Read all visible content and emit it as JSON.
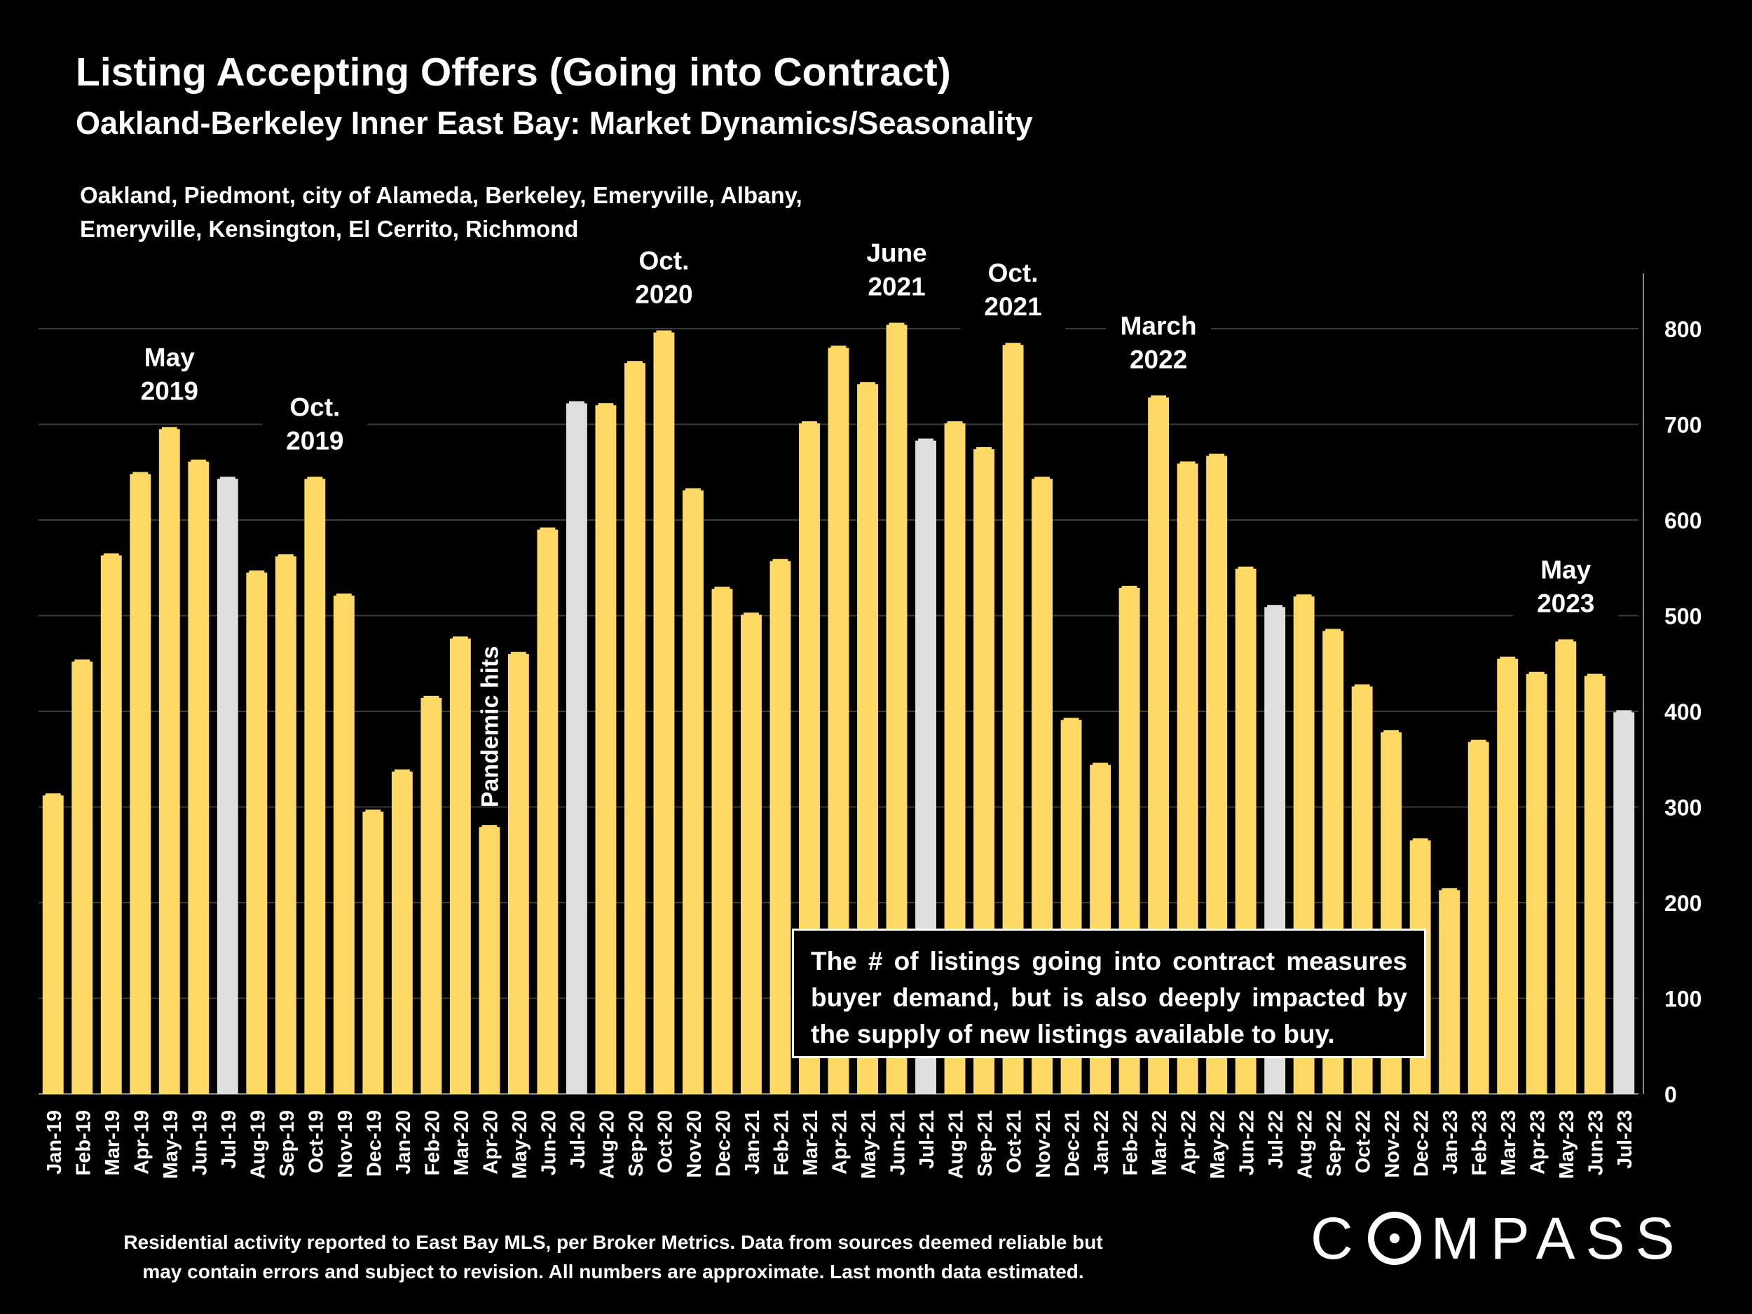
{
  "chart_data": {
    "type": "bar",
    "title": "Listing Accepting Offers (Going into Contract)",
    "subtitle": "Oakland-Berkeley Inner East Bay: Market Dynamics/Seasonality",
    "region_note": "Oakland, Piedmont, city of Alameda, Berkeley, Emeryville, Albany, Emeryville, Kensington, El Cerrito, Richmond",
    "categories": [
      "Jan-19",
      "Feb-19",
      "Mar-19",
      "Apr-19",
      "May-19",
      "Jun-19",
      "Jul-19",
      "Aug-19",
      "Sep-19",
      "Oct-19",
      "Nov-19",
      "Dec-19",
      "Jan-20",
      "Feb-20",
      "Mar-20",
      "Apr-20",
      "May-20",
      "Jun-20",
      "Jul-20",
      "Aug-20",
      "Sep-20",
      "Oct-20",
      "Nov-20",
      "Dec-20",
      "Jan-21",
      "Feb-21",
      "Mar-21",
      "Apr-21",
      "May-21",
      "Jun-21",
      "Jul-21",
      "Aug-21",
      "Sep-21",
      "Oct-21",
      "Nov-21",
      "Dec-21",
      "Jan-22",
      "Feb-22",
      "Mar-22",
      "Apr-22",
      "May-22",
      "Jun-22",
      "Jul-22",
      "Aug-22",
      "Sep-22",
      "Oct-22",
      "Nov-22",
      "Dec-22",
      "Jan-23",
      "Feb-23",
      "Mar-23",
      "Apr-23",
      "May-23",
      "Jun-23",
      "Jul-23"
    ],
    "values": [
      312,
      452,
      563,
      648,
      695,
      661,
      643,
      545,
      562,
      643,
      521,
      295,
      337,
      414,
      476,
      279,
      460,
      590,
      722,
      720,
      764,
      796,
      631,
      528,
      501,
      557,
      701,
      780,
      742,
      804,
      683,
      701,
      674,
      783,
      643,
      391,
      344,
      529,
      728,
      659,
      667,
      549,
      509,
      520,
      484,
      426,
      378,
      265,
      213,
      368,
      455,
      439,
      473,
      437,
      399
    ],
    "highlight_color": "#DEDEDE",
    "highlighted": [
      "Jul-19",
      "Jul-20",
      "Jul-21",
      "Jul-22",
      "Jul-23"
    ],
    "bar_color": "#FFD966",
    "ylim": [
      0,
      850
    ],
    "yticks": [
      0,
      100,
      200,
      300,
      400,
      500,
      600,
      700,
      800
    ],
    "y_axis_side": "right",
    "grid": true,
    "annotations": [
      {
        "category": "May-19",
        "lines": [
          "May",
          "2019"
        ]
      },
      {
        "category": "Oct-19",
        "lines": [
          "Oct.",
          "2019"
        ]
      },
      {
        "category": "Apr-20",
        "lines": [
          "Pandemic hits"
        ],
        "rotated": true
      },
      {
        "category": "Oct-20",
        "lines": [
          "Oct.",
          "2020"
        ]
      },
      {
        "category": "Jun-21",
        "lines": [
          "June",
          "2021"
        ]
      },
      {
        "category": "Oct-21",
        "lines": [
          "Oct.",
          "2021"
        ]
      },
      {
        "category": "Mar-22",
        "lines": [
          "March",
          "2022"
        ]
      },
      {
        "category": "May-23",
        "lines": [
          "May",
          "2023"
        ]
      }
    ]
  },
  "note": "The # of listings going into contract measures buyer demand, but is also deeply impacted by the supply of new listings available to buy.",
  "footer_line1": "Residential activity reported to East Bay MLS, per Broker Metrics. Data from sources deemed reliable but",
  "footer_line2": "may contain errors and subject to revision. All numbers are approximate. Last month data estimated.",
  "logo": {
    "left": "C",
    "right": "MPASS"
  }
}
